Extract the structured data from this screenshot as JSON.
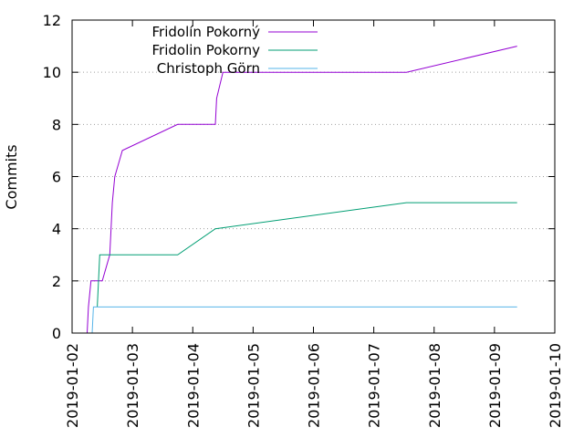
{
  "chart_data": {
    "type": "line",
    "title": "",
    "xlabel": "",
    "ylabel": "Commits",
    "x_axis": {
      "type": "date",
      "range": [
        "2019-01-02",
        "2019-01-10"
      ],
      "tick_labels": [
        "2019-01-02",
        "2019-01-03",
        "2019-01-04",
        "2019-01-05",
        "2019-01-06",
        "2019-01-07",
        "2019-01-08",
        "2019-01-09",
        "2019-01-10"
      ]
    },
    "y_axis": {
      "range": [
        0,
        12
      ],
      "tick_labels": [
        "0",
        "2",
        "4",
        "6",
        "8",
        "10",
        "12"
      ]
    },
    "grid": "horizontal dotted",
    "legend_position": "top-left",
    "series": [
      {
        "name": "Fridolín Pokorný",
        "color": "#9400d3",
        "points": [
          [
            "2019-01-02T06:00",
            0
          ],
          [
            "2019-01-02T06:30",
            1
          ],
          [
            "2019-01-02T07:30",
            2
          ],
          [
            "2019-01-02T12:00",
            2
          ],
          [
            "2019-01-02T15:00",
            3
          ],
          [
            "2019-01-02T16:00",
            5
          ],
          [
            "2019-01-02T17:00",
            6
          ],
          [
            "2019-01-02T20:00",
            7
          ],
          [
            "2019-01-03T18:00",
            8
          ],
          [
            "2019-01-04T09:00",
            8
          ],
          [
            "2019-01-04T09:30",
            9
          ],
          [
            "2019-01-04T12:00",
            10
          ],
          [
            "2019-01-07T13:00",
            10
          ],
          [
            "2019-01-09T09:00",
            11
          ]
        ]
      },
      {
        "name": "Fridolin Pokorny",
        "color": "#009e73",
        "points": [
          [
            "2019-01-02T10:00",
            1
          ],
          [
            "2019-01-02T11:00",
            3
          ],
          [
            "2019-01-03T18:00",
            3
          ],
          [
            "2019-01-04T09:00",
            4
          ],
          [
            "2019-01-07T13:00",
            5
          ],
          [
            "2019-01-09T09:00",
            5
          ]
        ]
      },
      {
        "name": "Christoph Görn",
        "color": "#56b4e9",
        "points": [
          [
            "2019-01-02T08:00",
            0
          ],
          [
            "2019-01-02T08:30",
            1
          ],
          [
            "2019-01-09T09:00",
            1
          ]
        ]
      }
    ]
  }
}
